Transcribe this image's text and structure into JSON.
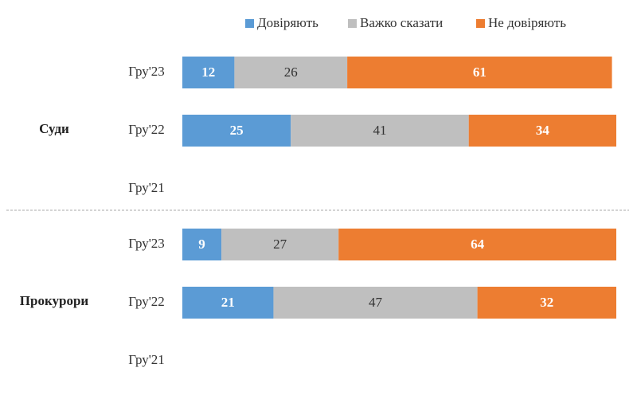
{
  "chart_data": {
    "type": "stacked-bar",
    "legend": [
      {
        "name": "Довіряють",
        "color": "#5b9bd5"
      },
      {
        "name": "Важко сказати",
        "color": "#bfbfbf"
      },
      {
        "name": "Не  довіряють",
        "color": "#ed7d31"
      }
    ],
    "xlim": [
      0,
      100
    ],
    "groups": [
      {
        "name": "Суди",
        "categories": [
          "Гру'23",
          "Гру'22",
          "Гру'21"
        ],
        "series": [
          {
            "values": [
              12,
              25,
              null
            ]
          },
          {
            "values": [
              26,
              41,
              null
            ]
          },
          {
            "values": [
              61,
              34,
              null
            ]
          }
        ]
      },
      {
        "name": "Прокурори",
        "categories": [
          "Гру'23",
          "Гру'22",
          "Гру'21"
        ],
        "series": [
          {
            "values": [
              9,
              21,
              null
            ]
          },
          {
            "values": [
              27,
              47,
              null
            ]
          },
          {
            "values": [
              64,
              32,
              null
            ]
          }
        ]
      }
    ]
  }
}
